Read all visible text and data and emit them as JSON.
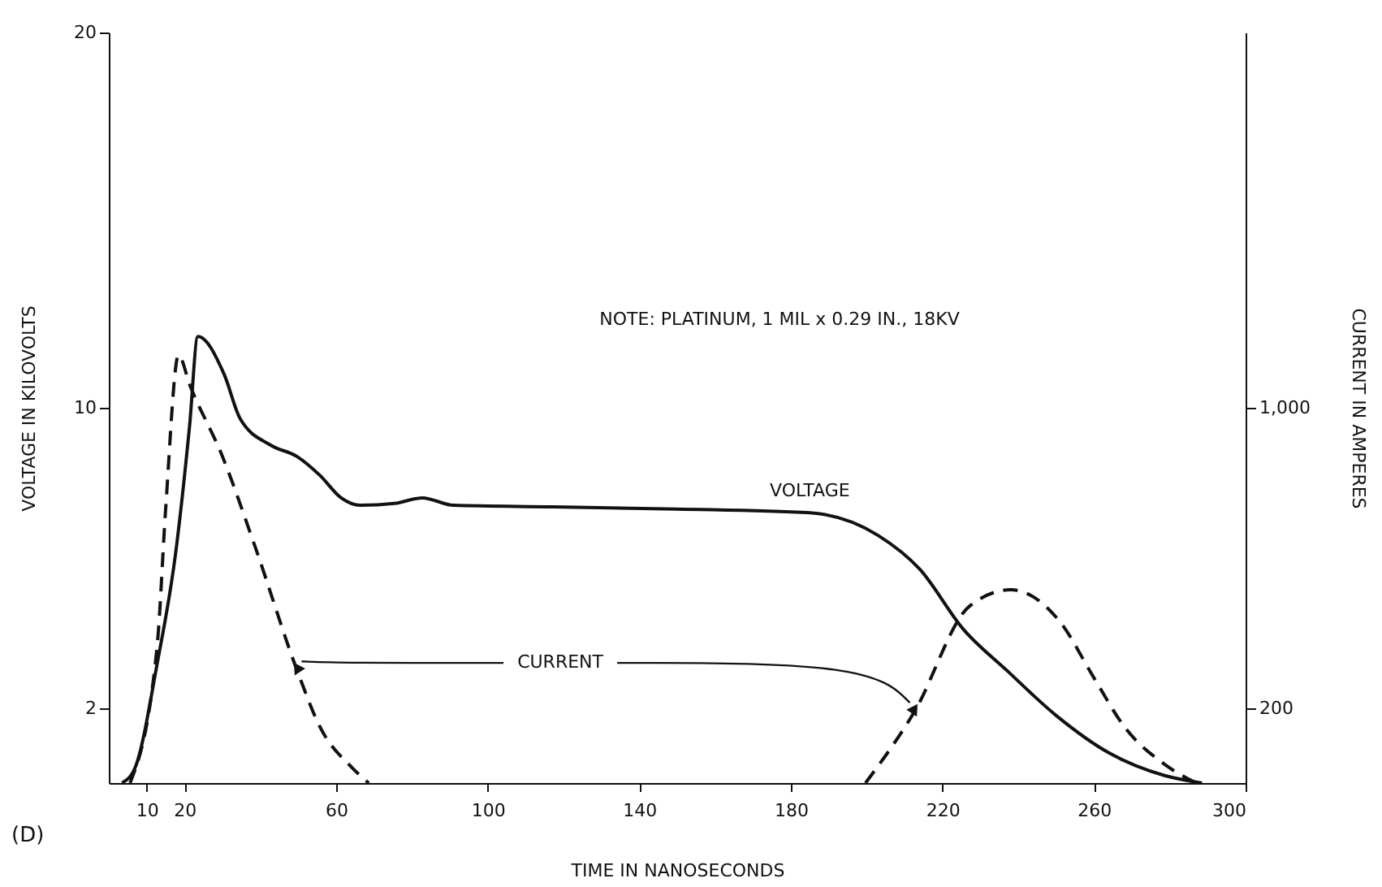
{
  "chart_data": {
    "type": "line",
    "title": "(D)",
    "xlabel": "TIME IN NANOSECONDS",
    "ylabel": "VOLTAGE IN KILOVOLTS",
    "y2label": "CURRENT IN AMPERES",
    "annotations": [
      "NOTE: PLATINUM, 1 MIL x 0.29 IN., 18KV"
    ],
    "xlim": [
      0,
      300
    ],
    "xticks": [
      10,
      20,
      60,
      100,
      140,
      180,
      220,
      260,
      300
    ],
    "ylim": [
      0,
      20
    ],
    "yticks": [
      2,
      10,
      20
    ],
    "y2lim": [
      0,
      2000
    ],
    "y2ticks": [
      200,
      {
        "value": 1000,
        "label": "1,000"
      }
    ],
    "grid": false,
    "marker": "none",
    "series": [
      {
        "name": "VOLTAGE",
        "color": "#111111",
        "line_style": "solid",
        "x": [
          3.5,
          6.9,
          12.8,
          17.6,
          21.3,
          23.5,
          30.4,
          34.7,
          42.8,
          49.7,
          55.7,
          61.3,
          66.4,
          75.4,
          82.7,
          91,
          117,
          150,
          185,
          203,
          214,
          225.5,
          237,
          250,
          264,
          278.6,
          288.5
        ],
        "values": [
          0,
          0.4,
          3.2,
          6.1,
          9.5,
          11.9,
          10.9,
          9.7,
          9.0,
          8.7,
          8.2,
          7.6,
          7.4,
          7.45,
          7.6,
          7.4,
          7.36,
          7.3,
          7.2,
          6.6,
          5.7,
          4.1,
          3.0,
          1.8,
          0.8,
          0.2,
          0
        ]
      },
      {
        "name": "CURRENT",
        "color": "#111111",
        "line_style": "dashed",
        "axis": "y2",
        "x": [
          5.6,
          12.8,
          15,
          18.4,
          21.4,
          30,
          38.6,
          49.7,
          55.7,
          64.3,
          68.6,
          134,
          199.7,
          212.6,
          227,
          238,
          251,
          260,
          268,
          278.6,
          287
        ],
        "values": [
          0,
          370,
          730,
          1140,
          1060,
          870,
          630,
          300,
          150,
          40,
          0,
          null,
          0,
          190,
          470,
          515,
          430,
          280,
          150,
          50,
          0
        ]
      }
    ]
  }
}
